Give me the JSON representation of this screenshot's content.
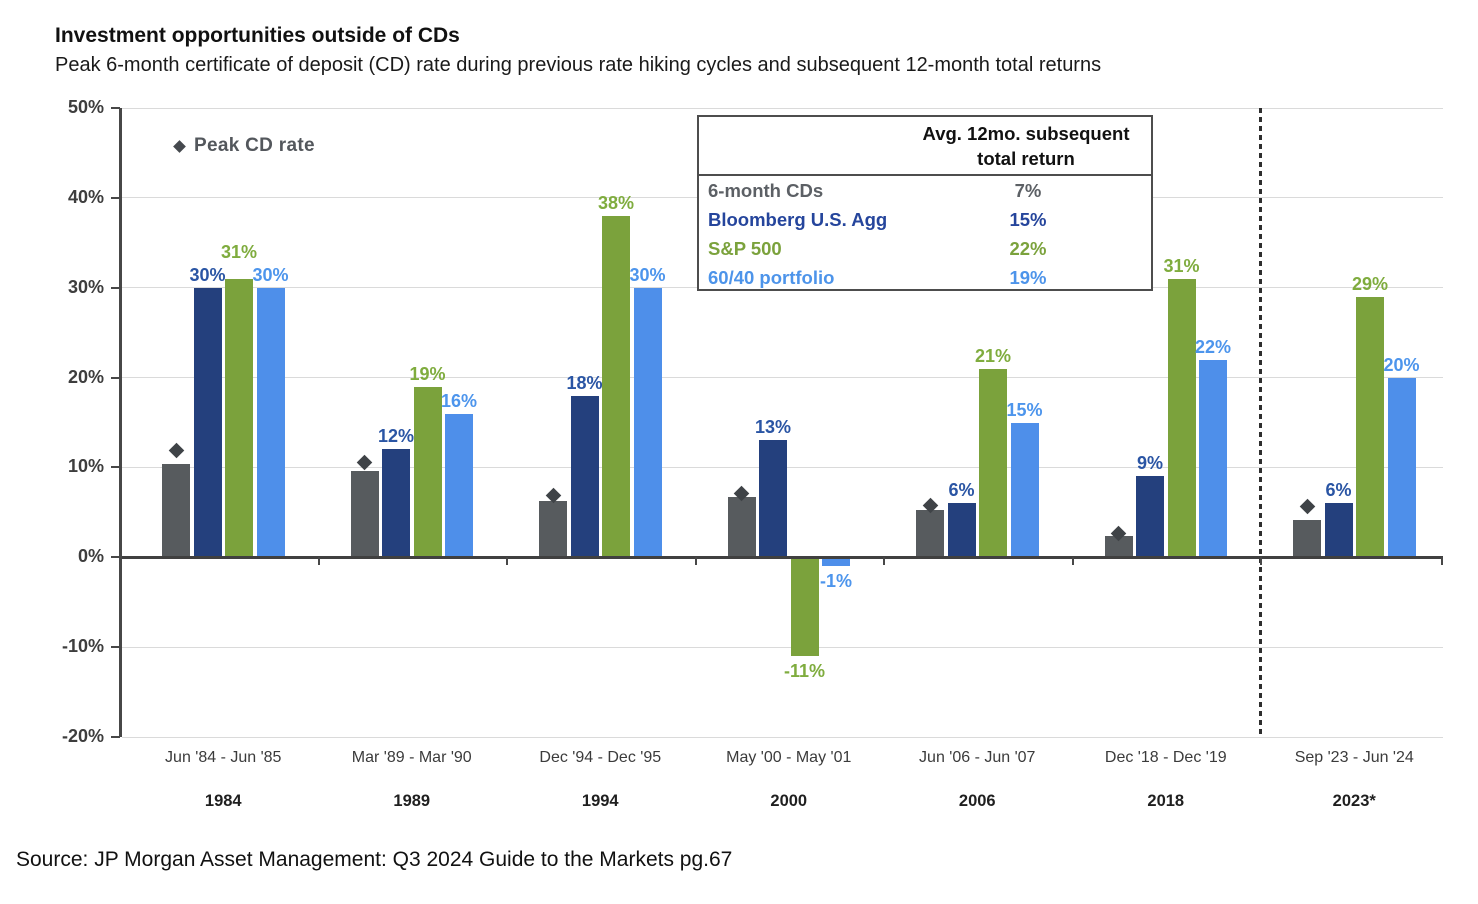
{
  "header": {
    "title": "Investment opportunities outside of CDs",
    "subtitle": "Peak 6-month certificate of deposit (CD) rate during previous rate hiking cycles and subsequent 12-month total returns"
  },
  "legend": {
    "peak_cd_label": "Peak CD rate",
    "marker_color": "#45494e"
  },
  "summary_table": {
    "header_line1": "Avg. 12mo. subsequent",
    "header_line2": "total return",
    "rows": [
      {
        "label": "6-month CDs",
        "value": "7%",
        "color": "#5c6065"
      },
      {
        "label": "Bloomberg U.S. Agg",
        "value": "15%",
        "color": "#25459c"
      },
      {
        "label": "S&P 500",
        "value": "22%",
        "color": "#7ba23c"
      },
      {
        "label": "60/40 portfolio",
        "value": "19%",
        "color": "#4d94ea"
      }
    ]
  },
  "source": "Source: JP Morgan Asset Management: Q3 2024 Guide to the Markets pg.67",
  "chart_data": {
    "type": "bar",
    "title": "Investment opportunities outside of CDs",
    "subtitle": "Peak 6-month certificate of deposit (CD) rate during previous rate hiking cycles and subsequent 12-month total returns",
    "xlabel": "",
    "ylabel": "",
    "ylim": [
      -20,
      50
    ],
    "grid": true,
    "ytick_values": [
      50,
      40,
      30,
      20,
      10,
      0,
      -10,
      -20
    ],
    "ytick_labels": [
      "50%",
      "40%",
      "30%",
      "20%",
      "10%",
      "0%",
      "-10%",
      "-20%"
    ],
    "categories": [
      "Jun '84 - Jun '85",
      "Mar '89 - Mar '90",
      "Dec '94 - Dec '95",
      "May '00 - May '01",
      "Jun '06 - Jun '07",
      "Dec '18 - Dec '19",
      "Sep '23 - Jun '24"
    ],
    "category_years": [
      "1984",
      "1989",
      "1994",
      "2000",
      "2006",
      "2018",
      "2023*"
    ],
    "series": [
      {
        "name": "6-month CDs",
        "color": "#575b5e",
        "values": [
          10.4,
          9.6,
          6.3,
          6.7,
          5.3,
          2.4,
          4.2
        ],
        "labels": [
          "",
          "",
          "",
          "",
          "",
          "",
          ""
        ]
      },
      {
        "name": "Bloomberg U.S. Agg",
        "color": "#24407d",
        "label_color": "#2a55a4",
        "values": [
          30,
          12,
          18,
          13,
          6,
          9,
          6
        ],
        "labels": [
          "30%",
          "12%",
          "18%",
          "13%",
          "6%",
          "9%",
          "6%"
        ]
      },
      {
        "name": "S&P 500",
        "color": "#7ba23c",
        "label_color": "#7fac3e",
        "values": [
          31,
          19,
          38,
          -11,
          21,
          31,
          29
        ],
        "labels": [
          "31%",
          "19%",
          "38%",
          "-11%",
          "21%",
          "31%",
          "29%"
        ]
      },
      {
        "name": "60/40 portfolio",
        "color": "#4e8fea",
        "label_color": "#4d95ec",
        "values": [
          30,
          16,
          30,
          -1,
          15,
          22,
          20
        ],
        "labels": [
          "30%",
          "16%",
          "30%",
          "-1%",
          "15%",
          "22%",
          "20%"
        ]
      }
    ],
    "point_series": {
      "name": "Peak CD rate",
      "marker": "diamond",
      "color": "#3f4347",
      "values": [
        11.9,
        10.5,
        6.9,
        7.1,
        5.8,
        2.7,
        5.6
      ]
    },
    "separator_after_category_index": 5,
    "legend_position": "upper-left",
    "table_annotation": {
      "header": "Avg. 12mo. subsequent total return",
      "rows": [
        [
          "6-month CDs",
          "7%"
        ],
        [
          "Bloomberg U.S. Agg",
          "15%"
        ],
        [
          "S&P 500",
          "22%"
        ],
        [
          "60/40 portfolio",
          "19%"
        ]
      ]
    }
  }
}
